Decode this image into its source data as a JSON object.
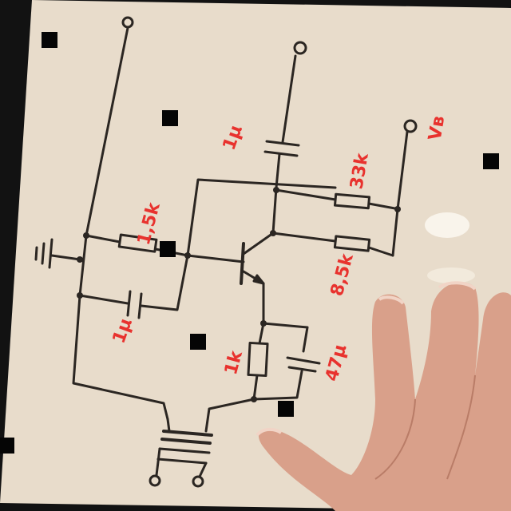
{
  "colors": {
    "paper": "#e8dccb",
    "ink": "#2b2622",
    "label_red": "#e8322e",
    "background": "#121212",
    "skin": "#d9a08a"
  },
  "labels": {
    "r1": "1,5k",
    "r2": "33k",
    "r3": "8,5k",
    "r4": "1k",
    "c1": "1µ",
    "c2": "1µ",
    "c3": "47µ",
    "vcc": "Vв"
  }
}
